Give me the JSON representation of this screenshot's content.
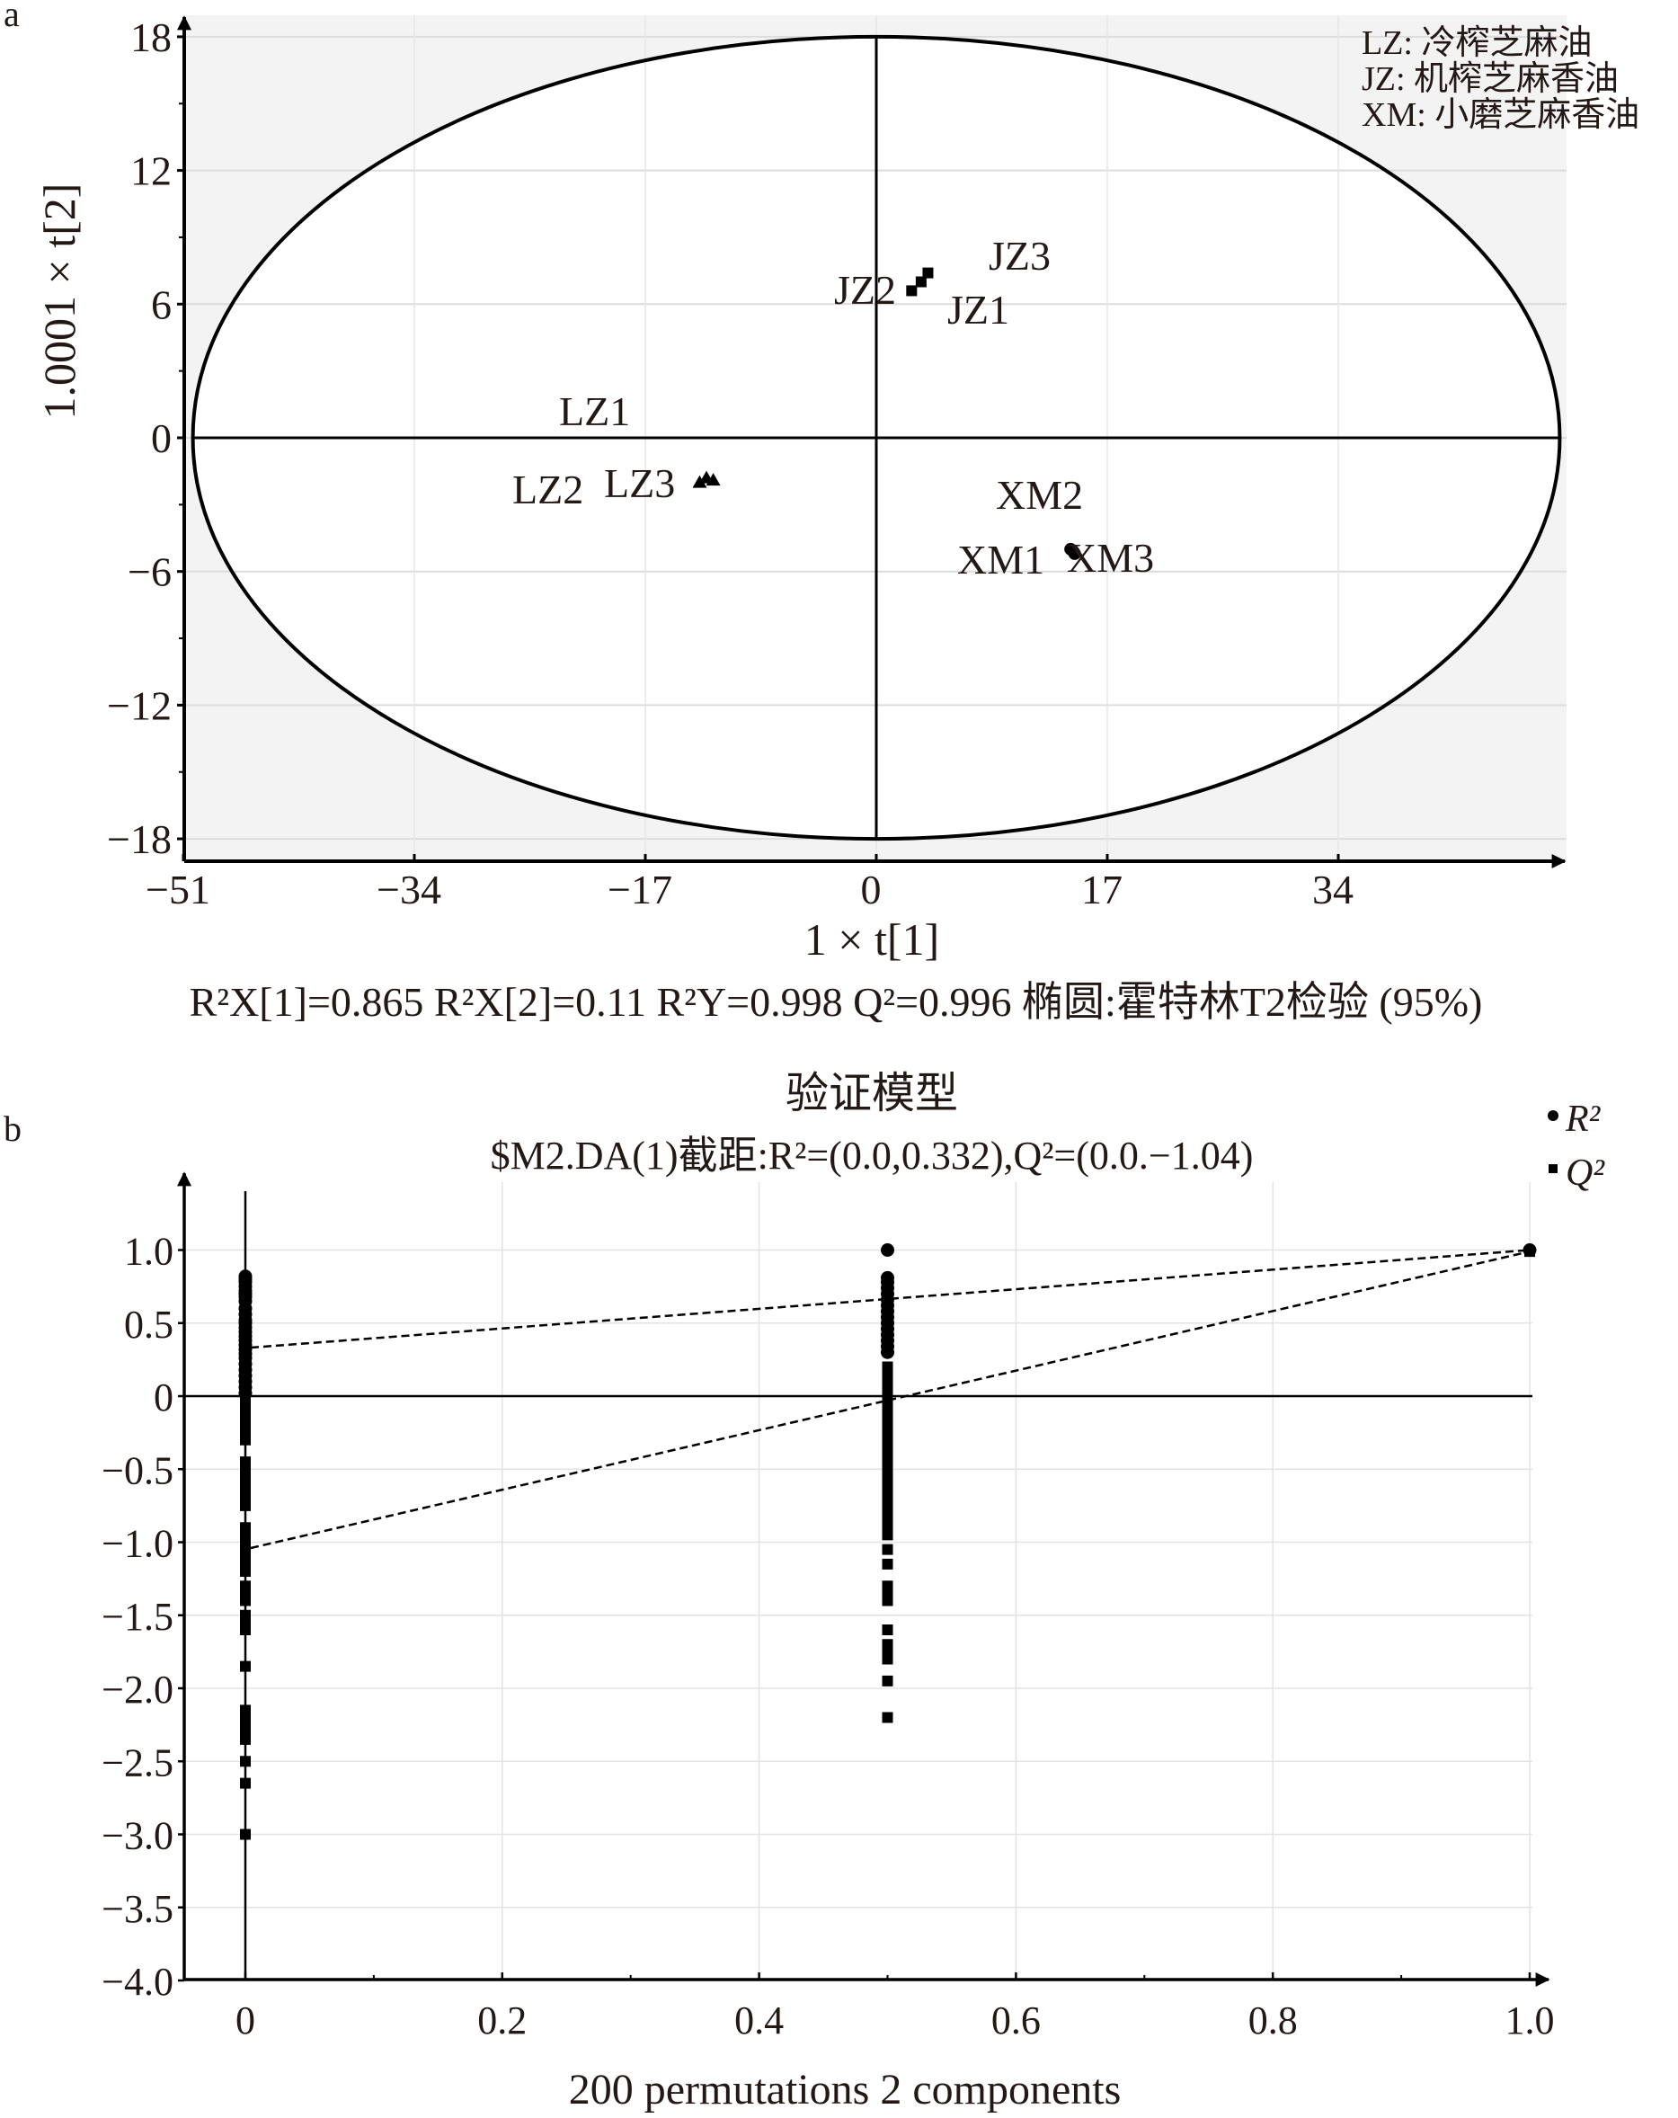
{
  "figure": {
    "panel_a_label": "a",
    "panel_b_label": "b"
  },
  "chart_data": [
    {
      "id": "a",
      "type": "scatter",
      "title": "",
      "xlabel": "1 × t[1]",
      "ylabel": "1.0001 × t[2]",
      "xlim": [
        -51,
        46
      ],
      "ylim": [
        -18,
        19
      ],
      "xticks": [
        -51,
        -34,
        -17,
        0,
        17,
        34
      ],
      "xtick_labels": [
        "−51",
        "−34",
        "−17",
        "0",
        "17",
        "34"
      ],
      "yticks": [
        -18,
        -12,
        -6,
        0,
        6,
        12,
        18
      ],
      "ytick_labels": [
        "−18",
        "−12",
        "−6",
        "0",
        "6",
        "12",
        "18"
      ],
      "grid": true,
      "ellipse": {
        "cx": 0,
        "cy": 0,
        "rx": 50.3,
        "ry": 18,
        "label": "椭圆:霍特林T2检验 (95%)"
      },
      "legend": {
        "position": "top-right",
        "entries": [
          "LZ: 冷榨芝麻油",
          "JZ: 机榨芝麻香油",
          "XM: 小磨芝麻香油"
        ]
      },
      "series": [
        {
          "name": "LZ",
          "marker": "triangle",
          "points": [
            {
              "label": "LZ1",
              "x": -12.5,
              "y": -1.8
            },
            {
              "label": "LZ2",
              "x": -13.0,
              "y": -2.0
            },
            {
              "label": "LZ3",
              "x": -12.0,
              "y": -1.9
            }
          ]
        },
        {
          "name": "JZ",
          "marker": "square",
          "points": [
            {
              "label": "JZ1",
              "x": 3.3,
              "y": 7.0
            },
            {
              "label": "JZ2",
              "x": 2.6,
              "y": 6.6
            },
            {
              "label": "JZ3",
              "x": 3.8,
              "y": 7.4
            }
          ]
        },
        {
          "name": "XM",
          "marker": "circle",
          "points": [
            {
              "label": "XM1",
              "x": 14.3,
              "y": -5.0
            },
            {
              "label": "XM2",
              "x": 14.5,
              "y": -5.1
            },
            {
              "label": "XM3",
              "x": 14.6,
              "y": -5.2
            }
          ]
        }
      ],
      "annotation": "R²X[1]=0.865 R²X[2]=0.11 R²Y=0.998 Q²=0.996 椭圆:霍特林T2检验 (95%)",
      "stats": {
        "R2X1": 0.865,
        "R2X2": 0.11,
        "R2Y": 0.998,
        "Q2": 0.996
      }
    },
    {
      "id": "b",
      "type": "scatter",
      "title": "验证模型",
      "subtitle": "$M2.DA(1)截距:R²=(0.0,0.332),Q²=(0.0.−1.04)",
      "xlabel": "200 permutations 2 components",
      "ylabel": "",
      "xlim": [
        -0.05,
        1.05
      ],
      "ylim": [
        -4.0,
        1.4
      ],
      "xticks": [
        0,
        0.2,
        0.4,
        0.6,
        0.8,
        1.0
      ],
      "xtick_labels": [
        "0",
        "0.2",
        "0.4",
        "0.6",
        "0.8",
        "1.0"
      ],
      "yticks": [
        1.0,
        0.5,
        0,
        -0.5,
        -1.0,
        -1.5,
        -2.0,
        -2.5,
        -3.0,
        -3.5,
        -4.0
      ],
      "ytick_labels": [
        "1.0",
        "0.5",
        "0",
        "−0.5",
        "−1.0",
        "−1.5",
        "−2.0",
        "−2.5",
        "−3.0",
        "−3.5",
        "−4.0"
      ],
      "grid": true,
      "legend": {
        "position": "top-right",
        "entries": [
          "R²",
          "Q²"
        ]
      },
      "intercepts": {
        "R2": [
          0.0,
          0.332
        ],
        "Q2": [
          0.0,
          -1.04
        ]
      },
      "regression_lines": [
        {
          "name": "R2",
          "from": [
            0,
            0.332
          ],
          "to": [
            1.0,
            1.0
          ]
        },
        {
          "name": "Q2",
          "from": [
            0,
            -1.04
          ],
          "to": [
            1.0,
            0.99
          ]
        }
      ],
      "series": [
        {
          "name": "R²",
          "marker": "circle",
          "x0_values": [
            0.82,
            0.8,
            0.78,
            0.75,
            0.72,
            0.7,
            0.68,
            0.65,
            0.6,
            0.56,
            0.52,
            0.5,
            0.47,
            0.44,
            0.41,
            0.38,
            0.35,
            0.32,
            0.29,
            0.26,
            0.22,
            0.18,
            0.14,
            0.1,
            0.06,
            0.02
          ],
          "x05_values": [
            1.0,
            0.81,
            0.78,
            0.74,
            0.7,
            0.66,
            0.62,
            0.58,
            0.54,
            0.5,
            0.46,
            0.42,
            0.38,
            0.34,
            0.3
          ],
          "x1_values": [
            1.0
          ]
        },
        {
          "name": "Q²",
          "marker": "square",
          "x0_values": [
            0.0,
            -0.05,
            -0.1,
            -0.15,
            -0.2,
            -0.25,
            -0.3,
            -0.45,
            -0.5,
            -0.55,
            -0.6,
            -0.65,
            -0.7,
            -0.75,
            -0.9,
            -0.95,
            -1.0,
            -1.05,
            -1.1,
            -1.15,
            -1.2,
            -1.3,
            -1.35,
            -1.4,
            -1.5,
            -1.55,
            -1.6,
            -1.85,
            -2.15,
            -2.2,
            -2.25,
            -2.3,
            -2.35,
            -2.5,
            -2.65,
            -3.0
          ],
          "x05_values": [
            0.2,
            0.15,
            0.1,
            0.05,
            0.0,
            -0.05,
            -0.1,
            -0.15,
            -0.2,
            -0.25,
            -0.3,
            -0.35,
            -0.4,
            -0.45,
            -0.5,
            -0.55,
            -0.6,
            -0.65,
            -0.7,
            -0.75,
            -0.8,
            -0.85,
            -0.9,
            -0.95,
            -1.05,
            -1.15,
            -1.3,
            -1.35,
            -1.4,
            -1.6,
            -1.7,
            -1.75,
            -1.8,
            -1.95,
            -2.2
          ],
          "x1_values": [
            0.99
          ]
        }
      ]
    }
  ]
}
